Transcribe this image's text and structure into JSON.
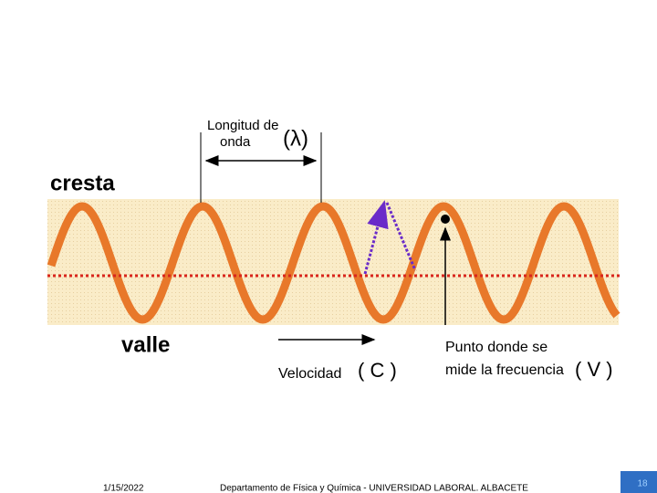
{
  "diagram": {
    "wavelength_label_1": "Longitud de",
    "wavelength_label_2": "onda",
    "wavelength_symbol": "(λ)",
    "crest_label": "cresta",
    "trough_label": "valle",
    "velocity_label": "Velocidad",
    "velocity_symbol": "( C )",
    "frequency_label_1": "Punto donde se",
    "frequency_label_2": "mide la frecuencia",
    "frequency_symbol": "( V )"
  },
  "footer": {
    "date": "1/15/2022",
    "department": "Departamento de Física y Química - UNIVERSIDAD LABORAL. ALBACETE",
    "page_number": "18"
  }
}
